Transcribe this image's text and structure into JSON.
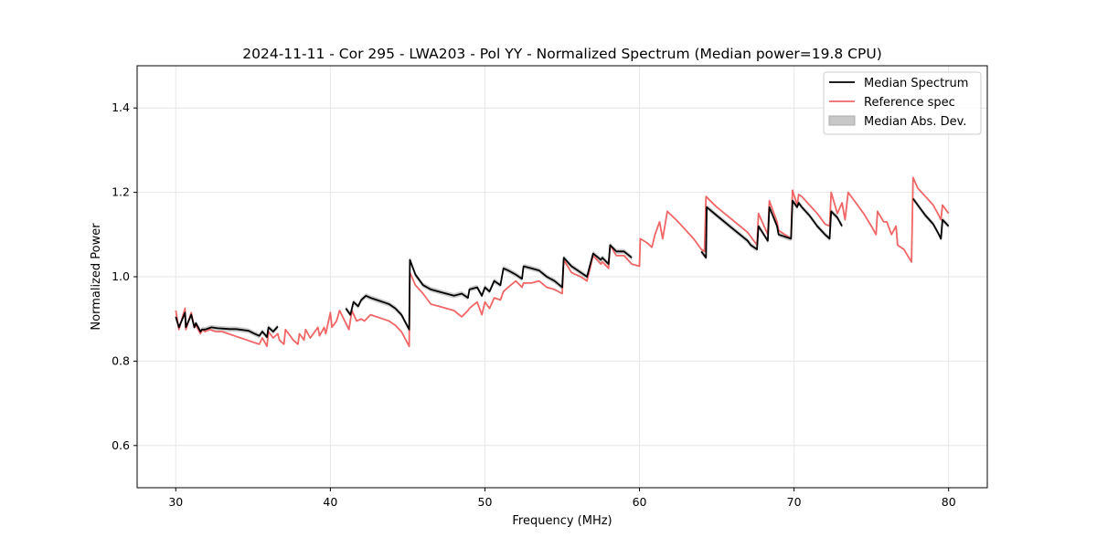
{
  "chart_data": {
    "type": "line",
    "title": "2024-11-11 - Cor 295 - LWA203 - Pol YY - Normalized Spectrum (Median power=19.8 CPU)",
    "xlabel": "Frequency (MHz)",
    "ylabel": "Normalized Power",
    "xlim": [
      27.5,
      82.5
    ],
    "ylim": [
      0.5,
      1.5
    ],
    "xticks": [
      30,
      40,
      50,
      60,
      70,
      80
    ],
    "yticks": [
      0.6,
      0.8,
      1.0,
      1.2,
      1.4
    ],
    "ytick_labels": [
      "0.6",
      "0.8",
      "1.0",
      "1.2",
      "1.4"
    ],
    "grid": true,
    "legend_position": "top-right",
    "legend": [
      "Median Spectrum",
      "Reference spec",
      "Median Abs. Dev."
    ],
    "colors": {
      "median": "#000000",
      "reference": "#f06666",
      "mad": "#c8c8c8"
    },
    "series": [
      {
        "name": "Reference spec",
        "x": [
          30.0,
          30.2,
          30.6,
          30.65,
          31.0,
          31.2,
          31.3,
          31.6,
          31.7,
          31.9,
          32.2,
          32.6,
          33.0,
          33.4,
          33.8,
          34.2,
          34.6,
          35.0,
          35.4,
          35.6,
          35.9,
          36.0,
          36.3,
          36.6,
          36.7,
          37.0,
          37.1,
          37.5,
          37.6,
          37.9,
          38.0,
          38.3,
          38.4,
          38.7,
          38.8,
          39.2,
          39.3,
          39.6,
          39.7,
          40.0,
          40.1,
          40.4,
          40.6,
          41.0,
          41.2,
          41.4,
          41.7,
          42.0,
          42.2,
          42.6,
          43.0,
          43.4,
          43.8,
          44.2,
          44.6,
          45.1,
          45.15,
          45.5,
          46.0,
          46.5,
          47.0,
          47.5,
          48.0,
          48.5,
          48.9,
          49.0,
          49.5,
          49.8,
          50.0,
          50.3,
          50.6,
          51.0,
          51.2,
          51.5,
          52.0,
          52.4,
          52.5,
          53.0,
          53.5,
          54.0,
          54.5,
          55.0,
          55.1,
          55.6,
          56.2,
          56.6,
          57.0,
          57.5,
          57.6,
          58.0,
          58.1,
          58.5,
          59.0,
          59.5,
          60.0,
          60.05,
          60.5,
          60.8,
          61.0,
          61.3,
          61.5,
          61.8,
          62.5,
          63.0,
          63.5,
          64.0,
          64.2,
          64.3,
          65.0,
          66.0,
          67.0,
          67.2,
          67.6,
          67.7,
          68.3,
          68.4,
          68.9,
          69.0,
          69.8,
          69.9,
          70.2,
          70.3,
          70.5,
          71.0,
          71.5,
          72.0,
          72.3,
          72.4,
          72.8,
          73.1,
          73.3,
          73.5,
          74.0,
          74.5,
          75.0,
          75.3,
          75.4,
          75.8,
          76.0,
          76.3,
          76.6,
          76.7,
          77.1,
          77.6,
          77.7,
          78.0,
          78.5,
          79.0,
          79.3,
          79.5,
          79.6,
          80.0
        ],
        "values": [
          0.92,
          0.875,
          0.925,
          0.875,
          0.915,
          0.88,
          0.885,
          0.865,
          0.875,
          0.87,
          0.875,
          0.87,
          0.87,
          0.865,
          0.86,
          0.855,
          0.85,
          0.845,
          0.84,
          0.855,
          0.835,
          0.87,
          0.855,
          0.865,
          0.85,
          0.84,
          0.875,
          0.855,
          0.85,
          0.84,
          0.865,
          0.85,
          0.875,
          0.855,
          0.86,
          0.88,
          0.86,
          0.88,
          0.865,
          0.915,
          0.88,
          0.895,
          0.92,
          0.89,
          0.875,
          0.92,
          0.895,
          0.9,
          0.895,
          0.91,
          0.905,
          0.9,
          0.895,
          0.885,
          0.87,
          0.835,
          1.01,
          0.98,
          0.96,
          0.935,
          0.93,
          0.925,
          0.92,
          0.905,
          0.92,
          0.925,
          0.94,
          0.91,
          0.94,
          0.925,
          0.95,
          0.945,
          0.965,
          0.975,
          0.99,
          0.975,
          0.985,
          0.985,
          0.99,
          0.975,
          0.97,
          0.96,
          1.04,
          1.01,
          1.0,
          0.99,
          1.05,
          1.03,
          1.035,
          1.02,
          1.075,
          1.05,
          1.05,
          1.03,
          1.025,
          1.09,
          1.08,
          1.07,
          1.1,
          1.13,
          1.09,
          1.155,
          1.13,
          1.11,
          1.09,
          1.065,
          1.06,
          1.19,
          1.165,
          1.135,
          1.105,
          1.095,
          1.075,
          1.15,
          1.1,
          1.18,
          1.13,
          1.11,
          1.09,
          1.205,
          1.17,
          1.195,
          1.19,
          1.17,
          1.15,
          1.125,
          1.12,
          1.2,
          1.15,
          1.175,
          1.135,
          1.2,
          1.175,
          1.15,
          1.12,
          1.1,
          1.155,
          1.13,
          1.13,
          1.1,
          1.12,
          1.075,
          1.065,
          1.035,
          1.235,
          1.21,
          1.19,
          1.17,
          1.15,
          1.135,
          1.17,
          1.15
        ],
        "breaks": []
      },
      {
        "name": "Median Spectrum",
        "segments": [
          {
            "x": [
              30.0,
              30.2,
              30.6,
              30.65,
              31.0,
              31.2,
              31.3,
              31.6,
              31.7,
              31.9,
              32.3,
              32.7,
              33.1,
              33.5,
              33.9,
              34.3,
              34.7,
              35.1,
              35.4,
              35.6,
              35.9,
              36.0,
              36.3,
              36.6
            ],
            "values": [
              0.905,
              0.88,
              0.915,
              0.88,
              0.91,
              0.88,
              0.89,
              0.87,
              0.875,
              0.875,
              0.88,
              0.878,
              0.877,
              0.876,
              0.876,
              0.874,
              0.872,
              0.865,
              0.86,
              0.87,
              0.857,
              0.88,
              0.87,
              0.882
            ]
          },
          {
            "x": [
              41.0,
              41.3,
              41.5,
              41.8,
              42.0,
              42.3,
              42.6,
              43.0,
              43.4,
              43.8,
              44.2,
              44.6,
              45.1,
              45.15,
              45.5,
              46.0,
              46.5,
              47.0,
              47.5,
              48.0,
              48.5,
              48.9,
              49.0,
              49.5,
              49.8,
              50.0,
              50.3,
              50.6,
              51.0,
              51.2,
              51.5,
              52.0,
              52.4,
              52.5,
              53.0,
              53.5,
              54.0,
              54.5,
              55.0,
              55.1,
              55.6,
              56.2,
              56.6,
              57.0,
              57.5,
              57.6,
              58.0,
              58.1,
              58.5,
              59.0,
              59.5
            ],
            "values": [
              0.925,
              0.91,
              0.94,
              0.93,
              0.945,
              0.955,
              0.95,
              0.945,
              0.94,
              0.935,
              0.925,
              0.91,
              0.875,
              1.04,
              1.005,
              0.98,
              0.97,
              0.965,
              0.96,
              0.955,
              0.96,
              0.95,
              0.97,
              0.975,
              0.955,
              0.975,
              0.965,
              0.99,
              0.98,
              1.02,
              1.015,
              1.005,
              0.995,
              1.025,
              1.02,
              1.015,
              1.0,
              0.99,
              0.975,
              1.045,
              1.025,
              1.01,
              1.0,
              1.055,
              1.04,
              1.045,
              1.03,
              1.075,
              1.06,
              1.06,
              1.045
            ]
          },
          {
            "x": [
              64.0,
              64.3,
              64.35,
              65.0,
              66.0,
              67.0,
              67.2,
              67.6,
              67.7,
              68.3,
              68.4,
              68.9,
              69.0,
              69.8,
              69.9,
              70.2,
              70.3,
              70.5,
              71.0,
              71.5,
              72.0,
              72.3,
              72.4,
              72.8,
              73.1
            ],
            "values": [
              1.06,
              1.045,
              1.165,
              1.145,
              1.115,
              1.085,
              1.075,
              1.065,
              1.12,
              1.085,
              1.165,
              1.12,
              1.1,
              1.09,
              1.18,
              1.165,
              1.175,
              1.165,
              1.145,
              1.12,
              1.1,
              1.09,
              1.155,
              1.14,
              1.12
            ]
          },
          {
            "x": [
              77.7,
              78.0,
              78.5,
              79.0,
              79.3,
              79.5,
              79.6,
              80.0
            ],
            "values": [
              1.185,
              1.17,
              1.145,
              1.125,
              1.105,
              1.09,
              1.135,
              1.12
            ]
          }
        ]
      }
    ]
  }
}
